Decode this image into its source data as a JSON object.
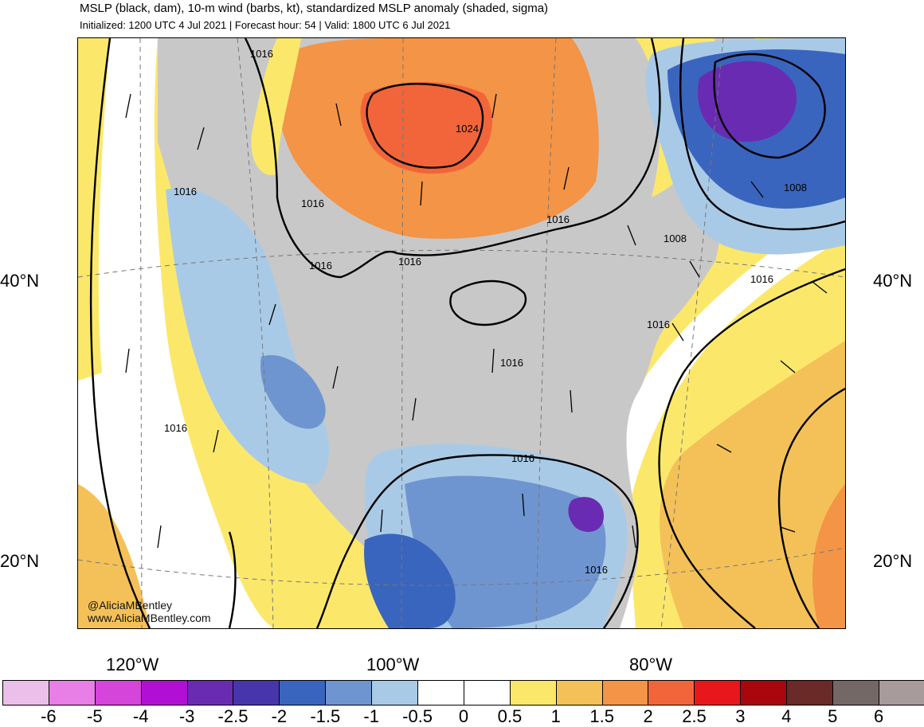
{
  "header": {
    "title": "MSLP (black, dam), 10-m wind (barbs, kt), standardized MSLP anomaly (shaded, sigma)",
    "subtitle": "Initialized: 1200 UTC 4 Jul 2021 | Forecast hour: 54 | Valid: 1800 UTC 6 Jul 2021"
  },
  "axes": {
    "lat_labels": [
      "40°N",
      "20°N"
    ],
    "lon_labels": [
      "120°W",
      "100°W",
      "80°W"
    ]
  },
  "isobars": {
    "labels": [
      "1016",
      "1024",
      "1016",
      "1016",
      "1016",
      "1016",
      "1016",
      "1008",
      "1008",
      "1016",
      "1016",
      "1016",
      "1016",
      "1016",
      "1016"
    ]
  },
  "credits": {
    "handle": "@AliciaMBentley",
    "website": "www.AliciaMBentley.com"
  },
  "colorbar": {
    "colors": [
      "#ebbfea",
      "#e77fe6",
      "#d545d9",
      "#b20fd4",
      "#6a2bb3",
      "#4735ac",
      "#3a65be",
      "#6f95d0",
      "#a9cae6",
      "#ffffff",
      "#ffffff",
      "#fbe86b",
      "#f4c158",
      "#f39446",
      "#f2653a",
      "#e8171c",
      "#a9070d",
      "#6a2a27",
      "#746866",
      "#a79c9b"
    ],
    "labels": [
      "-6",
      "-5",
      "-4",
      "-3",
      "-2.5",
      "-2",
      "-1.5",
      "-1",
      "-0.5",
      "0",
      "0.5",
      "1",
      "1.5",
      "2",
      "2.5",
      "3",
      "4",
      "5",
      "6"
    ]
  },
  "palette": {
    "land_gray": "#c8c8c8",
    "ocean_yellow": "#fbe86b",
    "ocean_orange": "#f4c158",
    "high_red": "#f2653a",
    "low_blue": "#3a65be",
    "low_light_blue": "#a9cae6"
  }
}
